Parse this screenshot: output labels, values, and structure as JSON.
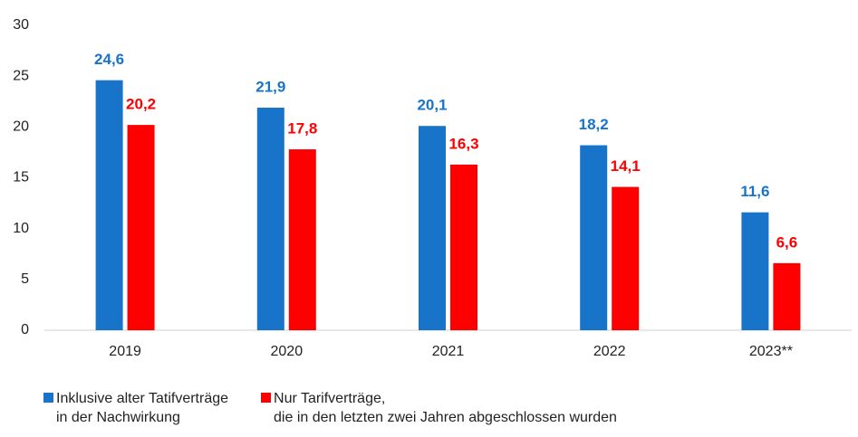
{
  "chart_data": {
    "type": "bar",
    "categories": [
      "2019",
      "2020",
      "2021",
      "2022",
      "2023**"
    ],
    "series": [
      {
        "name": "Inklusive alter Tatifverträge\nin der Nachwirkung",
        "color": "#1874c9",
        "values": [
          24.6,
          21.9,
          20.1,
          18.2,
          11.6
        ],
        "value_labels": [
          "24,6",
          "21,9",
          "20,1",
          "18,2",
          "11,6"
        ]
      },
      {
        "name": "Nur Tarifverträge,\ndie in den letzten zwei Jahren abgeschlossen wurden",
        "color": "#ff0000",
        "values": [
          20.2,
          17.8,
          16.3,
          14.1,
          6.6
        ],
        "value_labels": [
          "20,2",
          "17,8",
          "16,3",
          "14,1",
          "6,6"
        ]
      }
    ],
    "ylim": [
      0,
      30
    ],
    "yticks": [
      0,
      5,
      10,
      15,
      20,
      25,
      30
    ],
    "grid": false
  }
}
